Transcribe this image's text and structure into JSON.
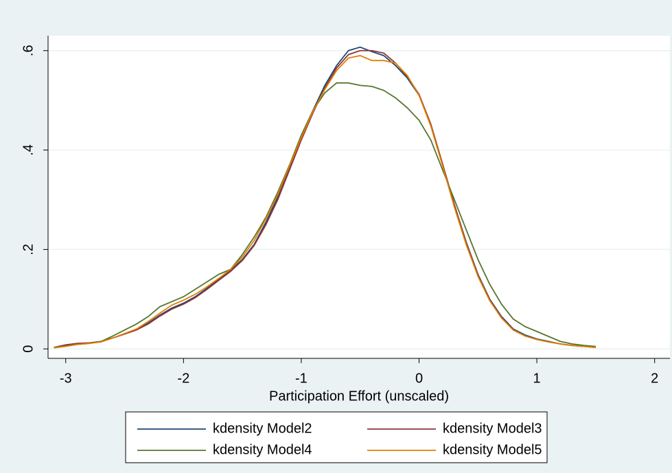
{
  "chart_data": {
    "type": "line",
    "x_label": "Participation Effort (unscaled)",
    "x": [
      -3.1,
      -3.0,
      -2.9,
      -2.8,
      -2.7,
      -2.6,
      -2.5,
      -2.4,
      -2.3,
      -2.2,
      -2.1,
      -2.0,
      -1.9,
      -1.8,
      -1.7,
      -1.6,
      -1.5,
      -1.4,
      -1.3,
      -1.2,
      -1.1,
      -1.0,
      -0.9,
      -0.8,
      -0.7,
      -0.6,
      -0.5,
      -0.4,
      -0.3,
      -0.2,
      -0.1,
      0.0,
      0.1,
      0.2,
      0.3,
      0.4,
      0.5,
      0.6,
      0.7,
      0.8,
      0.9,
      1.0,
      1.1,
      1.2,
      1.3,
      1.4,
      1.5
    ],
    "series": [
      {
        "name": "kdensity Model2",
        "color": "#1a476f",
        "values": [
          0.003,
          0.008,
          0.011,
          0.012,
          0.015,
          0.022,
          0.03,
          0.038,
          0.052,
          0.068,
          0.082,
          0.092,
          0.105,
          0.122,
          0.14,
          0.158,
          0.18,
          0.21,
          0.255,
          0.305,
          0.365,
          0.425,
          0.48,
          0.53,
          0.57,
          0.6,
          0.607,
          0.598,
          0.59,
          0.57,
          0.545,
          0.51,
          0.45,
          0.37,
          0.29,
          0.215,
          0.15,
          0.1,
          0.065,
          0.04,
          0.028,
          0.02,
          0.015,
          0.01,
          0.007,
          0.005,
          0.003
        ]
      },
      {
        "name": "kdensity Model3",
        "color": "#90353b",
        "values": [
          0.003,
          0.008,
          0.011,
          0.012,
          0.015,
          0.022,
          0.03,
          0.038,
          0.05,
          0.066,
          0.08,
          0.09,
          0.103,
          0.12,
          0.138,
          0.156,
          0.178,
          0.208,
          0.25,
          0.3,
          0.36,
          0.42,
          0.475,
          0.525,
          0.565,
          0.592,
          0.6,
          0.6,
          0.595,
          0.575,
          0.548,
          0.512,
          0.452,
          0.372,
          0.29,
          0.213,
          0.148,
          0.098,
          0.063,
          0.038,
          0.026,
          0.019,
          0.014,
          0.01,
          0.007,
          0.005,
          0.003
        ]
      },
      {
        "name": "kdensity Model4",
        "color": "#55752f",
        "values": [
          0.003,
          0.006,
          0.009,
          0.011,
          0.015,
          0.026,
          0.038,
          0.05,
          0.065,
          0.085,
          0.095,
          0.105,
          0.12,
          0.135,
          0.15,
          0.16,
          0.19,
          0.225,
          0.265,
          0.315,
          0.37,
          0.43,
          0.48,
          0.515,
          0.535,
          0.535,
          0.53,
          0.528,
          0.52,
          0.505,
          0.485,
          0.46,
          0.42,
          0.36,
          0.3,
          0.24,
          0.18,
          0.13,
          0.09,
          0.06,
          0.045,
          0.035,
          0.025,
          0.015,
          0.01,
          0.007,
          0.005
        ]
      },
      {
        "name": "kdensity Model5",
        "color": "#e37e00",
        "values": [
          0.002,
          0.005,
          0.009,
          0.011,
          0.014,
          0.022,
          0.031,
          0.04,
          0.055,
          0.072,
          0.088,
          0.098,
          0.11,
          0.125,
          0.142,
          0.16,
          0.185,
          0.218,
          0.262,
          0.31,
          0.368,
          0.425,
          0.478,
          0.522,
          0.56,
          0.585,
          0.59,
          0.58,
          0.58,
          0.575,
          0.55,
          0.51,
          0.448,
          0.368,
          0.285,
          0.21,
          0.146,
          0.097,
          0.062,
          0.038,
          0.026,
          0.019,
          0.014,
          0.01,
          0.007,
          0.005,
          0.003
        ]
      }
    ],
    "xlim": [
      -3.15,
      2.13
    ],
    "xticks": [
      -3,
      -2,
      -1,
      0,
      1,
      2
    ],
    "ylim": [
      -0.019,
      0.63
    ],
    "yticks": [
      0,
      {
        "value": 0.2,
        "label": ".2"
      },
      {
        "value": 0.4,
        "label": ".4"
      },
      {
        "value": 0.6,
        "label": ".6"
      }
    ],
    "grid": true,
    "legend": "bottom"
  }
}
